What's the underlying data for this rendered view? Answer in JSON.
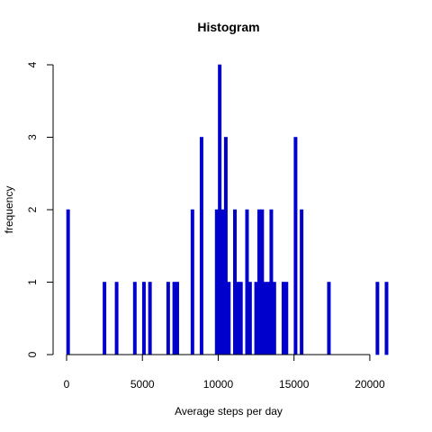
{
  "chart_data": {
    "type": "bar",
    "title": "Histogram",
    "xlabel": "Average steps per day",
    "ylabel": "frequency",
    "xlim": [
      0,
      21250
    ],
    "ylim": [
      0,
      4
    ],
    "xticks": [
      0,
      5000,
      10000,
      15000,
      20000
    ],
    "yticks": [
      0,
      1,
      2,
      3,
      4
    ],
    "bar_color": "#0000CD",
    "bar_width": 200,
    "bars": [
      {
        "x": 0,
        "count": 2
      },
      {
        "x": 2400,
        "count": 1
      },
      {
        "x": 3200,
        "count": 1
      },
      {
        "x": 4400,
        "count": 1
      },
      {
        "x": 5000,
        "count": 1
      },
      {
        "x": 5400,
        "count": 1
      },
      {
        "x": 6600,
        "count": 1
      },
      {
        "x": 7000,
        "count": 1
      },
      {
        "x": 7200,
        "count": 1
      },
      {
        "x": 8200,
        "count": 2
      },
      {
        "x": 8800,
        "count": 3
      },
      {
        "x": 9800,
        "count": 2
      },
      {
        "x": 10000,
        "count": 4
      },
      {
        "x": 10200,
        "count": 2
      },
      {
        "x": 10400,
        "count": 3
      },
      {
        "x": 10600,
        "count": 1
      },
      {
        "x": 11000,
        "count": 2
      },
      {
        "x": 11200,
        "count": 1
      },
      {
        "x": 11400,
        "count": 1
      },
      {
        "x": 11800,
        "count": 2
      },
      {
        "x": 12000,
        "count": 1
      },
      {
        "x": 12400,
        "count": 1
      },
      {
        "x": 12600,
        "count": 2
      },
      {
        "x": 12800,
        "count": 2
      },
      {
        "x": 13000,
        "count": 1
      },
      {
        "x": 13200,
        "count": 1
      },
      {
        "x": 13400,
        "count": 2
      },
      {
        "x": 13600,
        "count": 1
      },
      {
        "x": 14200,
        "count": 1
      },
      {
        "x": 14400,
        "count": 1
      },
      {
        "x": 15000,
        "count": 3
      },
      {
        "x": 15400,
        "count": 2
      },
      {
        "x": 17200,
        "count": 1
      },
      {
        "x": 20400,
        "count": 1
      },
      {
        "x": 21000,
        "count": 1
      }
    ]
  }
}
